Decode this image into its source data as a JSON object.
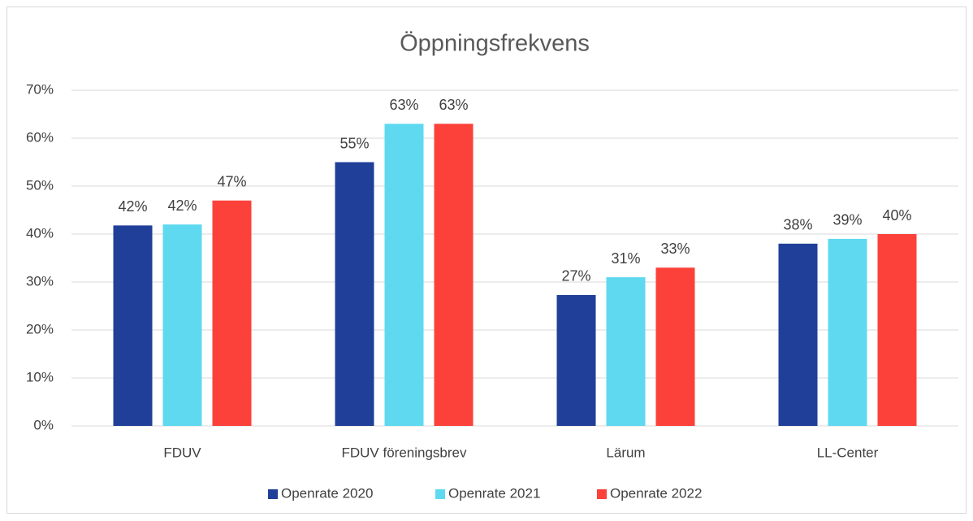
{
  "chart_data": {
    "type": "bar",
    "title": "Öppningsfrekvens",
    "categories": [
      "FDUV",
      "FDUV föreningsbrev",
      "Lärum",
      "LL-Center"
    ],
    "series": [
      {
        "name": "Openrate 2020",
        "color": "#203f99",
        "values": [
          41.8,
          55,
          27.3,
          38
        ],
        "value_labels": [
          "42%",
          "55%",
          "27%",
          "38%"
        ]
      },
      {
        "name": "Openrate 2021",
        "color": "#5fd9f0",
        "values": [
          42,
          63,
          31,
          39
        ],
        "value_labels": [
          "42%",
          "63%",
          "31%",
          "39%"
        ]
      },
      {
        "name": "Openrate 2022",
        "color": "#fb413a",
        "values": [
          47,
          63,
          33,
          40
        ],
        "value_labels": [
          "47%",
          "63%",
          "33%",
          "40%"
        ]
      }
    ],
    "ylim": [
      0,
      70
    ],
    "yticks": [
      {
        "value": 0,
        "label": "0%"
      },
      {
        "value": 10,
        "label": "10%"
      },
      {
        "value": 20,
        "label": "20%"
      },
      {
        "value": 30,
        "label": "30%"
      },
      {
        "value": 40,
        "label": "40%"
      },
      {
        "value": 50,
        "label": "50%"
      },
      {
        "value": 60,
        "label": "60%"
      },
      {
        "value": 70,
        "label": "70%"
      }
    ],
    "grid": true,
    "legend": "bottom"
  }
}
